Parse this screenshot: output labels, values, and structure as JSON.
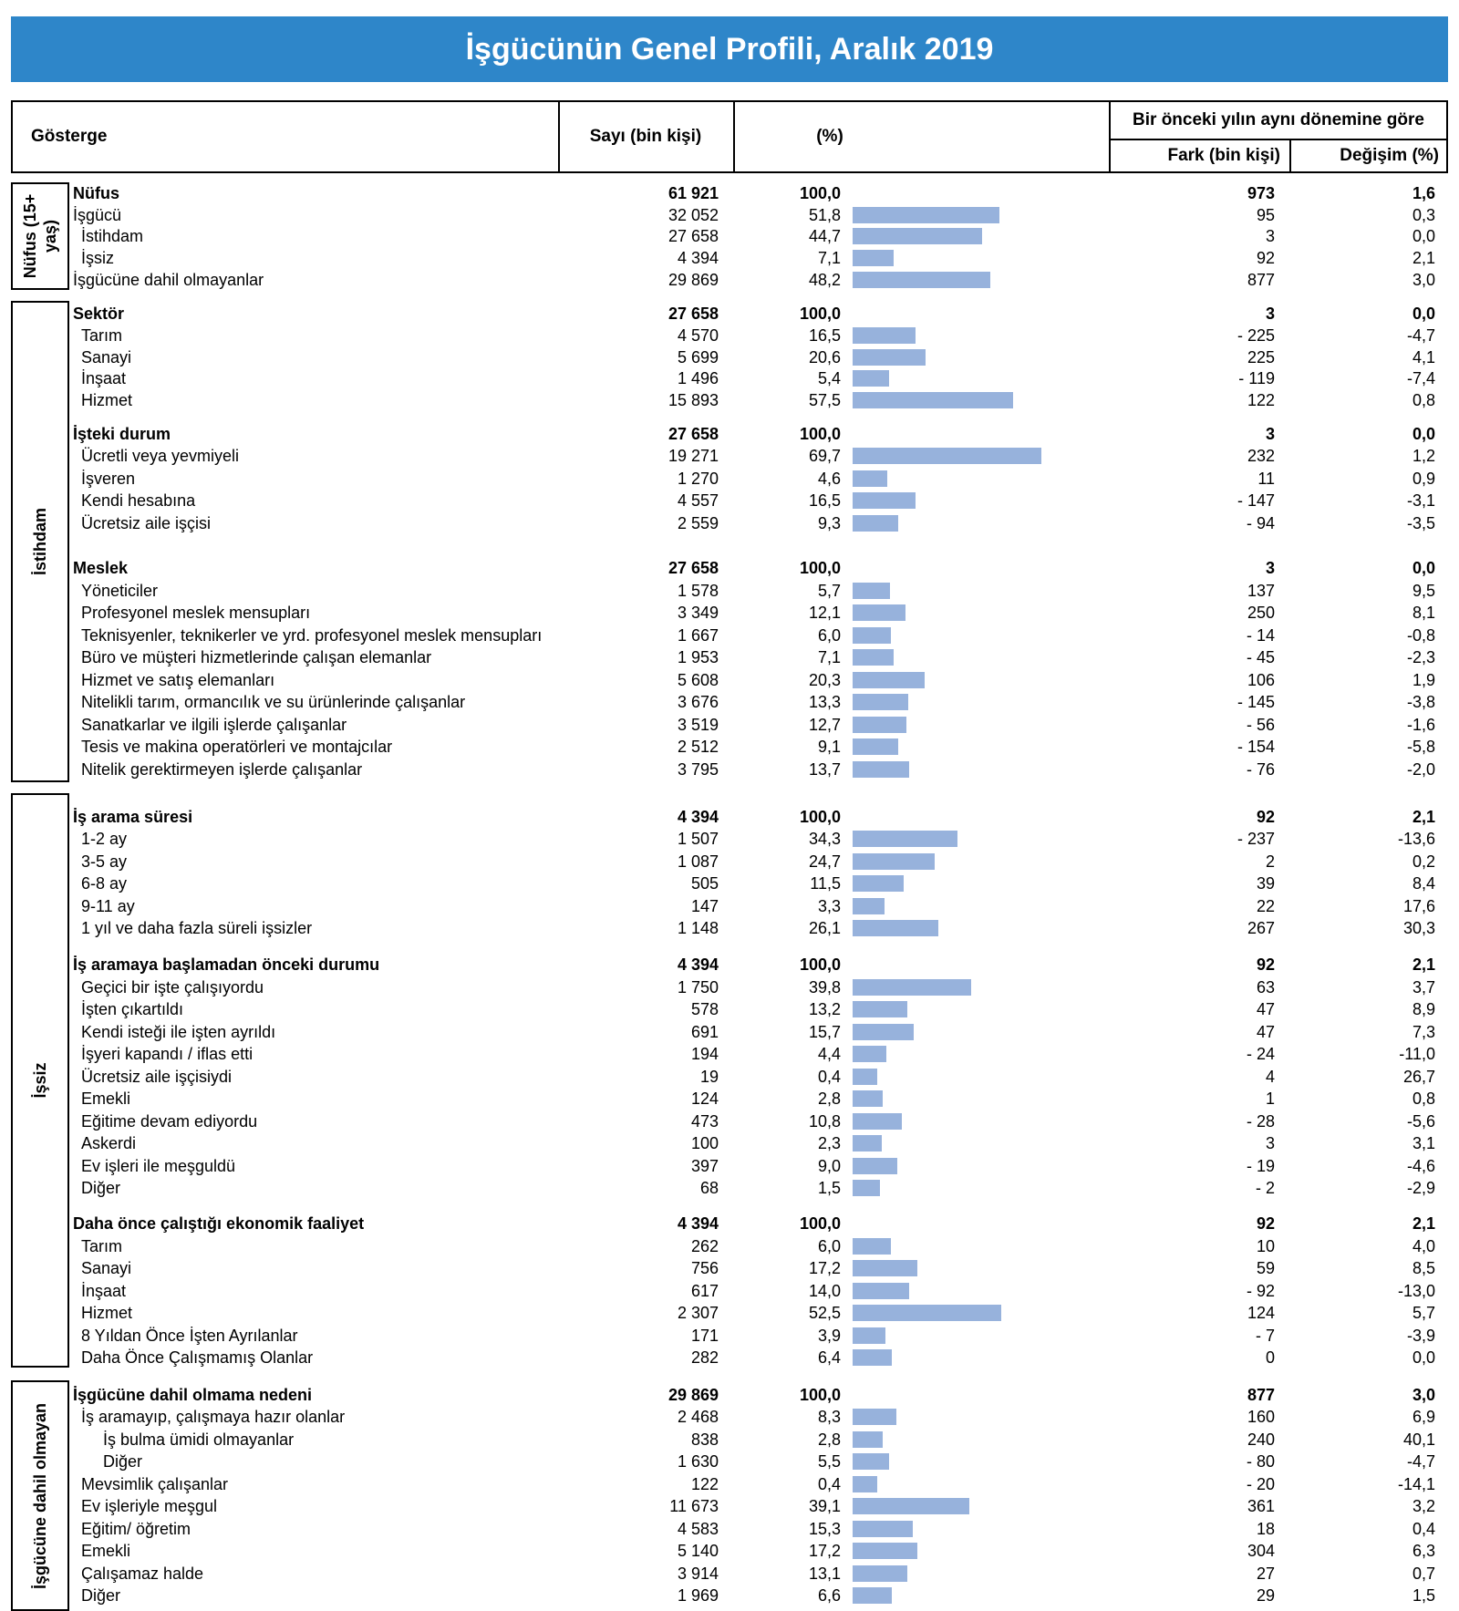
{
  "title": "İşgücünün Genel Profili, Aralık 2019",
  "header": {
    "gosterge": "Gösterge",
    "sayi": "Sayı (bin kişi)",
    "yuzde": "(%)",
    "onceki": "Bir önceki yılın aynı dönemine göre",
    "fark": "Fark (bin kişi)",
    "degisim": "Değişim (%)"
  },
  "sections": [
    {
      "label": "Nüfus (15+ yaş)",
      "rows": [
        [
          "Nüfus",
          "61 921",
          "100,0",
          "973",
          "1,6",
          0,
          true
        ],
        [
          "İşgücü",
          "32 052",
          "51,8",
          "95",
          "0,3",
          0,
          false
        ],
        [
          "İstihdam",
          "27 658",
          "44,7",
          "3",
          "0,0",
          1,
          false
        ],
        [
          "İşsiz",
          "4 394",
          "7,1",
          "92",
          "2,1",
          1,
          false
        ],
        [
          "İşgücüne dahil olmayanlar",
          "29 869",
          "48,2",
          "877",
          "3,0",
          0,
          false
        ]
      ]
    },
    {
      "label": "İstihdam",
      "rows": [
        [
          "Sektör",
          "27 658",
          "100,0",
          "3",
          "0,0",
          0,
          true
        ],
        [
          "Tarım",
          "4 570",
          "16,5",
          "- 225",
          "-4,7",
          1,
          false
        ],
        [
          "Sanayi",
          "5 699",
          "20,6",
          "225",
          "4,1",
          1,
          false
        ],
        [
          "İnşaat",
          "1 496",
          "5,4",
          "- 119",
          "-7,4",
          1,
          false
        ],
        [
          "Hizmet",
          "15 893",
          "57,5",
          "122",
          "0,8",
          1,
          false
        ],
        [
          "İşteki durum",
          "27 658",
          "100,0",
          "3",
          "0,0",
          0,
          true
        ],
        [
          "Ücretli veya yevmiyeli",
          "19 271",
          "69,7",
          "232",
          "1,2",
          1,
          false
        ],
        [
          "İşveren",
          "1 270",
          "4,6",
          "11",
          "0,9",
          1,
          false
        ],
        [
          "Kendi hesabına",
          "4 557",
          "16,5",
          "- 147",
          "-3,1",
          1,
          false
        ],
        [
          "Ücretsiz aile işçisi",
          "2 559",
          "9,3",
          "- 94",
          "-3,5",
          1,
          false
        ],
        [
          "Meslek",
          "27 658",
          "100,0",
          "3",
          "0,0",
          0,
          true
        ],
        [
          "Yöneticiler",
          "1 578",
          "5,7",
          "137",
          "9,5",
          1,
          false
        ],
        [
          "Profesyonel meslek mensupları",
          "3 349",
          "12,1",
          "250",
          "8,1",
          1,
          false
        ],
        [
          "Teknisyenler, teknikerler ve yrd. profesyonel meslek mensupları",
          "1 667",
          "6,0",
          "- 14",
          "-0,8",
          1,
          false
        ],
        [
          "Büro ve müşteri hizmetlerinde çalışan elemanlar",
          "1 953",
          "7,1",
          "- 45",
          "-2,3",
          1,
          false
        ],
        [
          "Hizmet ve satış elemanları",
          "5 608",
          "20,3",
          "106",
          "1,9",
          1,
          false
        ],
        [
          "Nitelikli tarım, ormancılık ve su ürünlerinde çalışanlar",
          "3 676",
          "13,3",
          "- 145",
          "-3,8",
          1,
          false
        ],
        [
          "Sanatkarlar ve ilgili işlerde çalışanlar",
          "3 519",
          "12,7",
          "- 56",
          "-1,6",
          1,
          false
        ],
        [
          "Tesis ve makina operatörleri ve montajcılar",
          "2 512",
          "9,1",
          "- 154",
          "-5,8",
          1,
          false
        ],
        [
          "Nitelik gerektirmeyen işlerde çalışanlar",
          "3 795",
          "13,7",
          "- 76",
          "-2,0",
          1,
          false
        ]
      ]
    },
    {
      "label": "İşsiz",
      "rows": [
        [
          "İş arama süresi",
          "4 394",
          "100,0",
          "92",
          "2,1",
          0,
          true
        ],
        [
          "1-2 ay",
          "1 507",
          "34,3",
          "- 237",
          "-13,6",
          1,
          false
        ],
        [
          "3-5 ay",
          "1 087",
          "24,7",
          "2",
          "0,2",
          1,
          false
        ],
        [
          "6-8 ay",
          "505",
          "11,5",
          "39",
          "8,4",
          1,
          false
        ],
        [
          "9-11 ay",
          "147",
          "3,3",
          "22",
          "17,6",
          1,
          false
        ],
        [
          "1 yıl ve daha fazla süreli işsizler",
          "1 148",
          "26,1",
          "267",
          "30,3",
          1,
          false
        ],
        [
          "İş aramaya başlamadan önceki durumu",
          "4 394",
          "100,0",
          "92",
          "2,1",
          0,
          true
        ],
        [
          "Geçici bir işte çalışıyordu",
          "1 750",
          "39,8",
          "63",
          "3,7",
          1,
          false
        ],
        [
          "İşten çıkartıldı",
          "578",
          "13,2",
          "47",
          "8,9",
          1,
          false
        ],
        [
          "Kendi isteği ile işten ayrıldı",
          "691",
          "15,7",
          "47",
          "7,3",
          1,
          false
        ],
        [
          "İşyeri kapandı / iflas etti",
          "194",
          "4,4",
          "- 24",
          "-11,0",
          1,
          false
        ],
        [
          "Ücretsiz aile işçisiydi",
          "19",
          "0,4",
          "4",
          "26,7",
          1,
          false
        ],
        [
          "Emekli",
          "124",
          "2,8",
          "1",
          "0,8",
          1,
          false
        ],
        [
          "Eğitime devam ediyordu",
          "473",
          "10,8",
          "- 28",
          "-5,6",
          1,
          false
        ],
        [
          "Askerdi",
          "100",
          "2,3",
          "3",
          "3,1",
          1,
          false
        ],
        [
          "Ev işleri ile meşguldü",
          "397",
          "9,0",
          "- 19",
          "-4,6",
          1,
          false
        ],
        [
          "Diğer",
          "68",
          "1,5",
          "- 2",
          "-2,9",
          1,
          false
        ],
        [
          "Daha önce çalıştığı ekonomik faaliyet",
          "4 394",
          "100,0",
          "92",
          "2,1",
          0,
          true
        ],
        [
          "Tarım",
          "262",
          "6,0",
          "10",
          "4,0",
          1,
          false
        ],
        [
          "Sanayi",
          "756",
          "17,2",
          "59",
          "8,5",
          1,
          false
        ],
        [
          "İnşaat",
          "617",
          "14,0",
          "- 92",
          "-13,0",
          1,
          false
        ],
        [
          "Hizmet",
          "2 307",
          "52,5",
          "124",
          "5,7",
          1,
          false
        ],
        [
          "8 Yıldan Önce İşten Ayrılanlar",
          "171",
          "3,9",
          "- 7",
          "-3,9",
          1,
          false
        ],
        [
          "Daha Önce Çalışmamış  Olanlar",
          "282",
          "6,4",
          "0",
          "0,0",
          1,
          false
        ]
      ]
    },
    {
      "label": "İşgücüne dahil olmayan",
      "rows": [
        [
          "İşgücüne dahil olmama nedeni",
          "29 869",
          "100,0",
          "877",
          "3,0",
          0,
          true
        ],
        [
          "İş aramayıp, çalışmaya hazır olanlar",
          "2 468",
          "8,3",
          "160",
          "6,9",
          1,
          false
        ],
        [
          "İş bulma ümidi olmayanlar",
          "838",
          "2,8",
          "240",
          "40,1",
          2,
          false
        ],
        [
          "Diğer",
          "1 630",
          "5,5",
          "- 80",
          "-4,7",
          2,
          false
        ],
        [
          "Mevsimlik çalışanlar",
          "122",
          "0,4",
          "- 20",
          "-14,1",
          1,
          false
        ],
        [
          "Ev işleriyle meşgul",
          "11 673",
          "39,1",
          "361",
          "3,2",
          1,
          false
        ],
        [
          "Eğitim/ öğretim",
          "4 583",
          "15,3",
          "18",
          "0,4",
          1,
          false
        ],
        [
          "Emekli",
          "5 140",
          "17,2",
          "304",
          "6,3",
          1,
          false
        ],
        [
          "Çalışamaz halde",
          "3 914",
          "13,1",
          "27",
          "0,7",
          1,
          false
        ],
        [
          "Diğer",
          "1 969",
          "6,6",
          "29",
          "1,5",
          1,
          false
        ]
      ]
    }
  ],
  "colors": {
    "banner": "#2e86c9",
    "bar": "#97b2dc"
  }
}
